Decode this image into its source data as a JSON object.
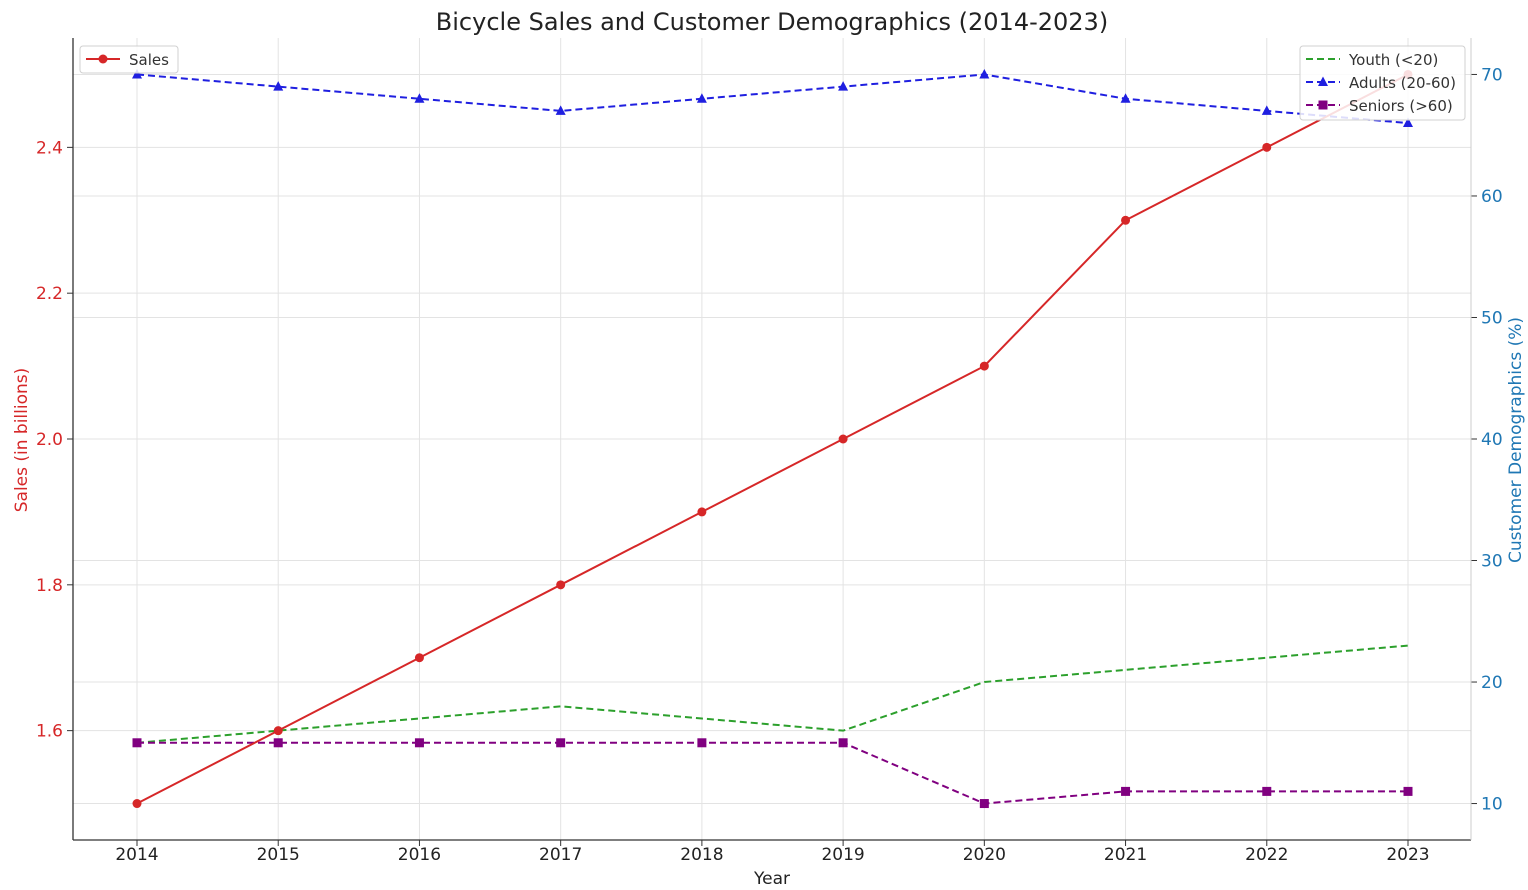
{
  "chart_data": {
    "type": "line",
    "title": "Bicycle Sales and Customer Demographics (2014-2023)",
    "xlabel": "Year",
    "ylabel_left": "Sales (in billions)",
    "ylabel_right": "Customer Demographics (%)",
    "x": [
      "2014",
      "2015",
      "2016",
      "2017",
      "2018",
      "2019",
      "2020",
      "2021",
      "2022",
      "2023"
    ],
    "ylim_left": [
      1.45,
      2.55
    ],
    "ylim_right": [
      7,
      73
    ],
    "yticks_left": [
      "1.6",
      "1.8",
      "2.0",
      "2.2",
      "2.4"
    ],
    "yticks_right": [
      "10",
      "20",
      "30",
      "40",
      "50",
      "60",
      "70"
    ],
    "grid": true,
    "left_series": [
      {
        "name": "Sales",
        "color": "#d62728",
        "dash": "solid",
        "marker": "circle",
        "values": [
          1.5,
          1.6,
          1.7,
          1.8,
          1.9,
          2.0,
          2.1,
          2.3,
          2.4,
          2.5
        ]
      }
    ],
    "right_series": [
      {
        "name": "Youth (<20)",
        "color": "#2ca02c",
        "dash": "dashed",
        "marker": "none",
        "values": [
          15,
          16,
          17,
          18,
          17,
          16,
          20,
          21,
          22,
          23
        ]
      },
      {
        "name": "Adults (20-60)",
        "color": "#1f1fe0",
        "dash": "dashed",
        "marker": "triangle",
        "values": [
          70,
          69,
          68,
          67,
          68,
          69,
          70,
          68,
          67,
          66
        ]
      },
      {
        "name": "Seniors (>60)",
        "color": "#800080",
        "dash": "dashed",
        "marker": "square",
        "values": [
          15,
          15,
          15,
          15,
          15,
          15,
          10,
          11,
          11,
          11
        ]
      }
    ],
    "legend_left": {
      "placement": "top-left",
      "entries": [
        "Sales"
      ]
    },
    "legend_right": {
      "placement": "top-right",
      "entries": [
        "Youth (<20)",
        "Adults (20-60)",
        "Seniors (>60)"
      ]
    },
    "colors": {
      "left_axis": "#d62728",
      "right_axis": "#1f77b4",
      "grid": "#e3e3e3"
    }
  }
}
